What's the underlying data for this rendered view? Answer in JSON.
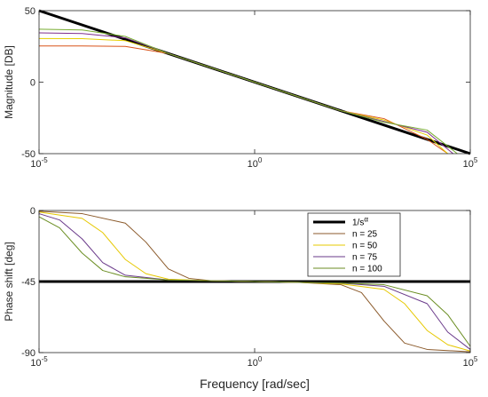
{
  "chart_data": [
    {
      "type": "line",
      "xscale": "log",
      "xlim": [
        1e-05,
        100000
      ],
      "ylim": [
        -50,
        50
      ],
      "yticks": [
        "50",
        "0",
        "-50"
      ],
      "xtick_base": "10",
      "xtick_exponents": [
        "-5",
        "0",
        "5"
      ],
      "xlabel": "",
      "ylabel": "Magnitude [DB]",
      "series": [
        {
          "color": "#000000",
          "x": [
            1e-05,
            100000
          ],
          "y": [
            50,
            -50
          ]
        },
        {
          "color": "#d95319",
          "x": [
            1e-05,
            0.0001,
            0.001,
            0.01,
            0.1,
            1,
            10,
            100,
            1000,
            10000,
            30000
          ],
          "y": [
            25.3,
            25.3,
            25,
            20,
            10,
            0,
            -10,
            -20,
            -25.5,
            -40,
            -50
          ]
        },
        {
          "color": "#e6d000",
          "x": [
            1e-05,
            0.0001,
            0.001,
            0.01,
            0.1,
            1,
            10,
            100,
            1000,
            10000,
            30000
          ],
          "y": [
            30.5,
            30.4,
            29,
            20,
            10,
            0,
            -10,
            -20,
            -26.5,
            -37,
            -50
          ]
        },
        {
          "color": "#7e2f8e",
          "x": [
            1e-05,
            0.0001,
            0.001,
            0.01,
            0.1,
            1,
            10,
            100,
            1000,
            10000,
            40000
          ],
          "y": [
            34.5,
            34,
            31,
            20,
            10,
            0,
            -10,
            -20,
            -27.5,
            -35,
            -50
          ]
        },
        {
          "color": "#77ac30",
          "x": [
            1e-05,
            0.0001,
            0.001,
            0.01,
            0.1,
            1,
            10,
            100,
            1000,
            10000,
            50000
          ],
          "y": [
            37,
            36.5,
            32,
            20,
            10,
            0,
            -10,
            -20,
            -28,
            -33.5,
            -50
          ]
        }
      ]
    },
    {
      "type": "line",
      "xscale": "log",
      "xlim": [
        1e-05,
        100000
      ],
      "ylim": [
        -90,
        0
      ],
      "yticks": [
        "0",
        "-45",
        "-90"
      ],
      "xtick_base": "10",
      "xtick_exponents": [
        "-5",
        "0",
        "5"
      ],
      "xlabel": "Frequency [rad/sec]",
      "ylabel": "Phase shift [deg]",
      "legend_position": "top-right",
      "legend": [
        "1/s",
        "n = 25",
        "n = 50",
        "n = 75",
        "n = 100"
      ],
      "legend_superscript": "α",
      "series": [
        {
          "color": "#000000",
          "x": [
            1e-05,
            100000
          ],
          "y": [
            -45,
            -45
          ]
        },
        {
          "color": "#8b5a2b",
          "x": [
            1e-05,
            0.0001,
            0.001,
            0.003,
            0.01,
            0.03,
            0.1,
            1,
            10,
            100,
            300,
            1000,
            3000,
            10000,
            100000
          ],
          "y": [
            -0.5,
            -2,
            -8,
            -20,
            -37,
            -43,
            -44.5,
            -45,
            -45.5,
            -47,
            -52,
            -70,
            -84,
            -88,
            -89.5
          ]
        },
        {
          "color": "#e6c800",
          "x": [
            1e-05,
            0.0001,
            0.0003,
            0.001,
            0.003,
            0.01,
            0.1,
            1,
            10,
            100,
            1000,
            3000,
            10000,
            30000,
            100000
          ],
          "y": [
            -1,
            -5,
            -14,
            -31,
            -40,
            -43.5,
            -44.5,
            -45,
            -45.5,
            -46.5,
            -50,
            -59,
            -76,
            -85,
            -89
          ]
        },
        {
          "color": "#6a3a8a",
          "x": [
            1e-05,
            3e-05,
            0.0001,
            0.0003,
            0.001,
            0.01,
            0.1,
            1,
            10,
            100,
            1000,
            10000,
            30000,
            100000
          ],
          "y": [
            -2,
            -6,
            -18,
            -33,
            -41,
            -44,
            -44.5,
            -45,
            -45.5,
            -46,
            -48,
            -59,
            -77,
            -88
          ]
        },
        {
          "color": "#6b8e23",
          "x": [
            1e-05,
            3e-05,
            0.0001,
            0.0003,
            0.001,
            0.01,
            0.1,
            1,
            10,
            100,
            1000,
            10000,
            30000,
            100000
          ],
          "y": [
            -4,
            -11,
            -27,
            -38,
            -42,
            -44,
            -44.5,
            -45,
            -45.5,
            -46,
            -47,
            -54,
            -66,
            -86
          ]
        }
      ]
    }
  ]
}
